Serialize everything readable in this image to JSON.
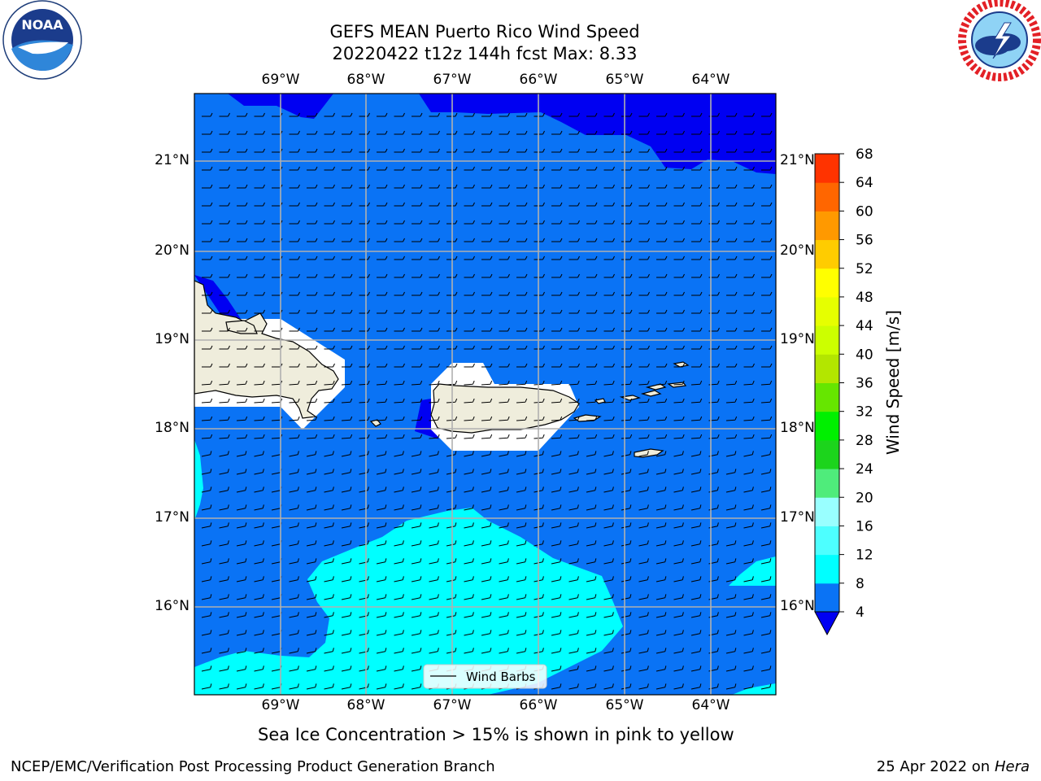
{
  "header": {
    "title_line1": "GEFS MEAN Puerto Rico Wind Speed",
    "title_line2": "20220422 t12z 144h fcst   Max: 8.33"
  },
  "logos": {
    "left": {
      "name": "noaa-logo",
      "text": "NOAA",
      "ring_text": "NATIONAL OCEANIC AND ATMOSPHERIC ADMINISTRATION · U.S. DEPARTMENT OF COMMERCE"
    },
    "right": {
      "name": "nws-logo",
      "ring_text": "NATIONAL WEATHER SERVICE"
    }
  },
  "map": {
    "lon_labels": [
      "69°W",
      "68°W",
      "67°W",
      "66°W",
      "65°W",
      "64°W"
    ],
    "lat_labels": [
      "21°N",
      "20°N",
      "19°N",
      "18°N",
      "17°N",
      "16°N"
    ],
    "legend_label": "Wind Barbs",
    "colors": {
      "ocean_main": "#0a73f5",
      "ocean_dark": "#0000f2",
      "ocean_cyan": "#00ffff",
      "land": "#efeddc"
    }
  },
  "colorbar": {
    "label": "Wind Speed [m/s]",
    "ticks": [
      "4",
      "8",
      "12",
      "16",
      "20",
      "24",
      "28",
      "32",
      "36",
      "40",
      "44",
      "48",
      "52",
      "56",
      "60",
      "64",
      "68"
    ],
    "colors": [
      "#0a73f5",
      "#00ffff",
      "#4dffff",
      "#99ffff",
      "#4fec7b",
      "#1cd41c",
      "#00f000",
      "#66e600",
      "#b3e600",
      "#ccff00",
      "#e6ff00",
      "#ffff00",
      "#ffcc00",
      "#ff9900",
      "#ff6600",
      "#ff3300",
      "#ff0000"
    ],
    "under_color": "#0000f2"
  },
  "caption": "Sea Ice Concentration > 15% is shown in pink to yellow",
  "footer": {
    "left": "NCEP/EMC/Verification Post Processing Product Generation Branch",
    "right_prefix": "25 Apr 2022 on ",
    "right_machine": "Hera"
  }
}
